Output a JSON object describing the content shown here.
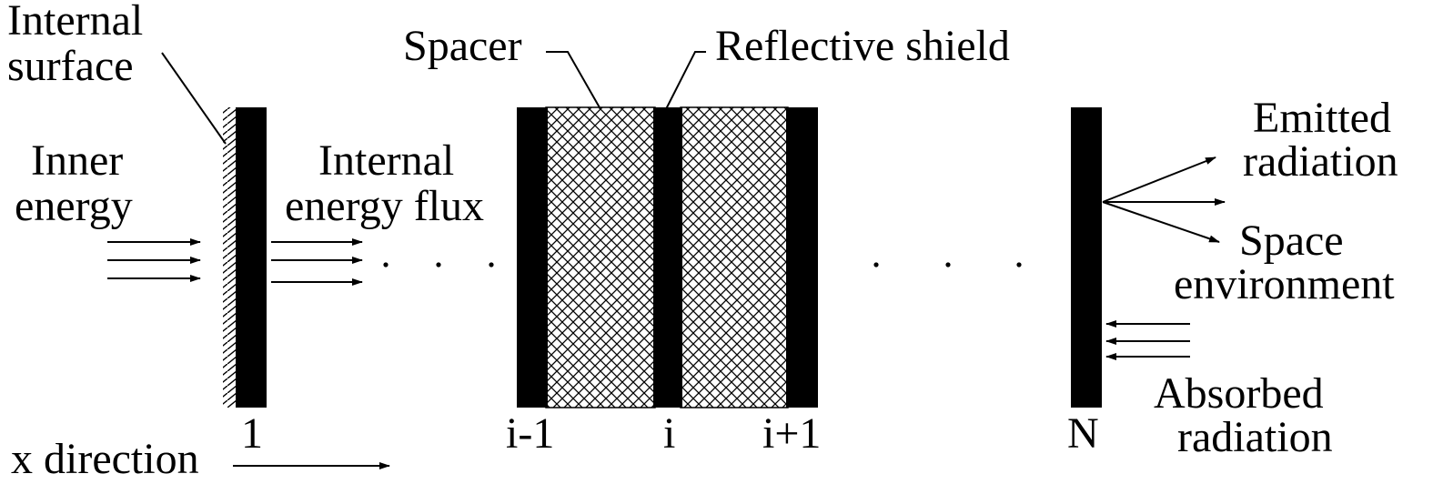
{
  "labels": {
    "internal_surface": [
      "Internal",
      "surface"
    ],
    "inner_energy": [
      "Inner",
      "energy"
    ],
    "internal_energy_flux": [
      "Internal",
      "energy flux"
    ],
    "spacer": "Spacer",
    "reflective_shield": "Reflective shield",
    "emitted_radiation": [
      "Emitted",
      "radiation"
    ],
    "space_environment": [
      "Space",
      "environment"
    ],
    "absorbed_radiation": [
      "Absorbed",
      "radiation"
    ],
    "x_direction": "x direction"
  },
  "layer_labels": {
    "first": "1",
    "prev": "i-1",
    "current": "i",
    "next": "i+1",
    "last": "N"
  },
  "colors": {
    "shield": "#000000",
    "spacer_hatch": "#000000",
    "background": "#ffffff"
  }
}
